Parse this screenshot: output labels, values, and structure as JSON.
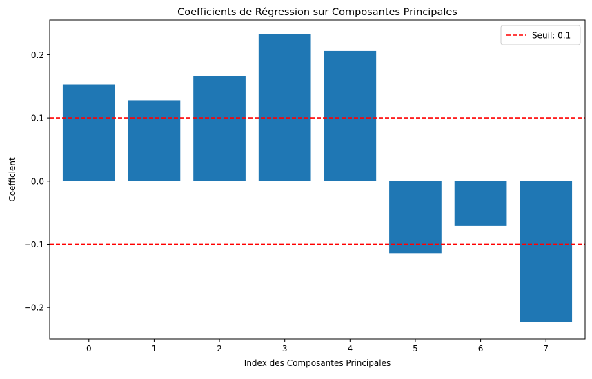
{
  "chart_data": {
    "type": "bar",
    "title": "Coefficients de Régression sur Composantes Principales",
    "xlabel": "Index des Composantes Principales",
    "ylabel": "Coefficient",
    "categories": [
      "0",
      "1",
      "2",
      "3",
      "4",
      "5",
      "6",
      "7"
    ],
    "values": [
      0.153,
      0.128,
      0.166,
      0.233,
      0.206,
      -0.114,
      -0.071,
      -0.223
    ],
    "ylim": [
      -0.25,
      0.255
    ],
    "yticks": [
      -0.2,
      -0.1,
      0.0,
      0.1,
      0.2
    ],
    "ytick_labels": [
      "−0.2",
      "−0.1",
      "0.0",
      "0.1",
      "0.2"
    ],
    "bar_color": "#1f77b4",
    "threshold_lines": [
      {
        "value": 0.1,
        "color": "#ff0000",
        "style": "dashed"
      },
      {
        "value": -0.1,
        "color": "#ff0000",
        "style": "dashed"
      }
    ],
    "legend": {
      "placement": "top-right",
      "entries": [
        {
          "label": "Seuil: 0.1",
          "color": "#ff0000",
          "style": "dashed"
        }
      ]
    },
    "grid": false
  }
}
